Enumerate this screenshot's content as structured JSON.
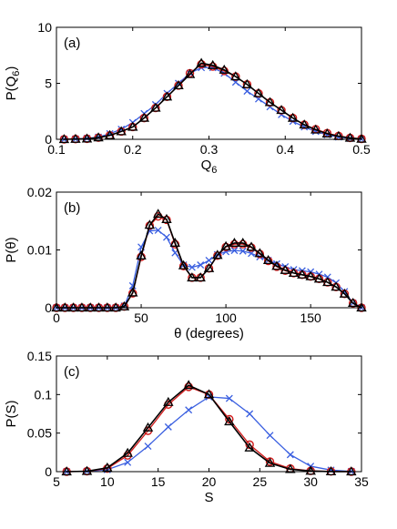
{
  "chart_data": [
    {
      "type": "line",
      "panel_label": "(a)",
      "xlabel": "Q",
      "xlabel_sub": "6",
      "ylabel": "P(Q",
      "ylabel_sub": "6",
      "ylabel_close": ")",
      "xlim": [
        0.1,
        0.5
      ],
      "ylim": [
        0,
        10
      ],
      "xticks": [
        0.1,
        0.2,
        0.3,
        0.4,
        0.5
      ],
      "xtick_labels": [
        "0.1",
        "0.2",
        "0.3",
        "0.4",
        "0.5"
      ],
      "yticks": [
        0,
        5,
        10
      ],
      "ytick_labels": [
        "0",
        "5",
        "10"
      ],
      "grid": false,
      "series": [
        {
          "color": "#3a5fe0",
          "marker": "x",
          "x": [
            0.11,
            0.125,
            0.14,
            0.155,
            0.17,
            0.185,
            0.2,
            0.215,
            0.23,
            0.245,
            0.26,
            0.275,
            0.29,
            0.305,
            0.32,
            0.335,
            0.35,
            0.365,
            0.38,
            0.395,
            0.41,
            0.425,
            0.44,
            0.455,
            0.47,
            0.485,
            0.5
          ],
          "y": [
            0.0,
            0.03,
            0.08,
            0.2,
            0.5,
            0.9,
            1.5,
            2.3,
            3.1,
            4.1,
            5.0,
            5.9,
            6.4,
            6.4,
            5.9,
            5.1,
            4.3,
            3.6,
            2.9,
            2.2,
            1.6,
            1.1,
            0.7,
            0.4,
            0.2,
            0.08,
            0.02
          ]
        },
        {
          "color": "#d01818",
          "marker": "o",
          "x": [
            0.11,
            0.125,
            0.14,
            0.155,
            0.17,
            0.185,
            0.2,
            0.215,
            0.23,
            0.245,
            0.26,
            0.275,
            0.29,
            0.305,
            0.32,
            0.335,
            0.35,
            0.365,
            0.38,
            0.395,
            0.41,
            0.425,
            0.44,
            0.455,
            0.47,
            0.485,
            0.5
          ],
          "y": [
            0.0,
            0.02,
            0.05,
            0.15,
            0.35,
            0.7,
            1.1,
            1.9,
            2.8,
            3.8,
            4.8,
            5.9,
            6.7,
            6.5,
            6.1,
            5.6,
            4.9,
            4.1,
            3.3,
            2.6,
            1.9,
            1.3,
            0.9,
            0.55,
            0.3,
            0.13,
            0.04
          ]
        },
        {
          "color": "#000000",
          "marker": "triangle",
          "x": [
            0.11,
            0.125,
            0.14,
            0.155,
            0.17,
            0.185,
            0.2,
            0.215,
            0.23,
            0.245,
            0.26,
            0.275,
            0.29,
            0.305,
            0.32,
            0.335,
            0.35,
            0.365,
            0.38,
            0.395,
            0.41,
            0.425,
            0.44,
            0.455,
            0.47,
            0.485,
            0.5
          ],
          "y": [
            0.0,
            0.02,
            0.05,
            0.15,
            0.35,
            0.7,
            1.1,
            1.9,
            2.8,
            3.8,
            4.8,
            5.8,
            6.8,
            6.6,
            6.2,
            5.6,
            4.9,
            4.1,
            3.3,
            2.6,
            1.9,
            1.3,
            0.85,
            0.5,
            0.27,
            0.12,
            0.03
          ]
        }
      ]
    },
    {
      "type": "line",
      "panel_label": "(b)",
      "xlabel": "θ (degrees)",
      "ylabel": "P(θ)",
      "xlim": [
        0,
        180
      ],
      "ylim": [
        0,
        0.02
      ],
      "xticks": [
        0,
        50,
        100,
        150
      ],
      "xtick_labels": [
        "0",
        "50",
        "100",
        "150"
      ],
      "yticks": [
        0,
        0.01,
        0.02
      ],
      "ytick_labels": [
        "0",
        "0.01",
        "0.02"
      ],
      "grid": false,
      "series": [
        {
          "color": "#3a5fe0",
          "marker": "x",
          "x": [
            0,
            5,
            10,
            15,
            20,
            25,
            30,
            35,
            40,
            45,
            50,
            55,
            60,
            65,
            70,
            75,
            80,
            85,
            90,
            95,
            100,
            105,
            110,
            115,
            120,
            125,
            130,
            135,
            140,
            145,
            150,
            155,
            160,
            165,
            170,
            175,
            180
          ],
          "y": [
            0,
            0,
            0,
            0,
            0,
            0,
            0,
            0,
            0.0003,
            0.0038,
            0.0105,
            0.0133,
            0.0134,
            0.0122,
            0.0095,
            0.0074,
            0.007,
            0.0074,
            0.0082,
            0.0092,
            0.0097,
            0.0099,
            0.0098,
            0.0094,
            0.0088,
            0.0082,
            0.0076,
            0.0071,
            0.0066,
            0.0064,
            0.0062,
            0.0058,
            0.0053,
            0.0043,
            0.0028,
            0.0008,
            0
          ]
        },
        {
          "color": "#d01818",
          "marker": "o",
          "x": [
            0,
            5,
            10,
            15,
            20,
            25,
            30,
            35,
            40,
            45,
            50,
            55,
            60,
            65,
            70,
            75,
            80,
            85,
            90,
            95,
            100,
            105,
            110,
            115,
            120,
            125,
            130,
            135,
            140,
            145,
            150,
            155,
            160,
            165,
            170,
            175,
            180
          ],
          "y": [
            0,
            0,
            0,
            0,
            0,
            0,
            0,
            0,
            0.0002,
            0.0025,
            0.0088,
            0.0142,
            0.0158,
            0.0152,
            0.011,
            0.0072,
            0.0052,
            0.0052,
            0.0068,
            0.009,
            0.0105,
            0.011,
            0.011,
            0.0104,
            0.0093,
            0.0081,
            0.0071,
            0.0064,
            0.006,
            0.0057,
            0.0054,
            0.005,
            0.0044,
            0.0036,
            0.0024,
            0.0008,
            0
          ]
        },
        {
          "color": "#000000",
          "marker": "triangle",
          "x": [
            0,
            5,
            10,
            15,
            20,
            25,
            30,
            35,
            40,
            45,
            50,
            55,
            60,
            65,
            70,
            75,
            80,
            85,
            90,
            95,
            100,
            105,
            110,
            115,
            120,
            125,
            130,
            135,
            140,
            145,
            150,
            155,
            160,
            165,
            170,
            175,
            180
          ],
          "y": [
            0,
            0,
            0,
            0,
            0,
            0,
            0,
            0,
            0.0002,
            0.0026,
            0.009,
            0.0143,
            0.0162,
            0.0153,
            0.0112,
            0.0073,
            0.0052,
            0.0052,
            0.0068,
            0.0091,
            0.0106,
            0.0112,
            0.0112,
            0.0105,
            0.0094,
            0.0082,
            0.0072,
            0.0065,
            0.006,
            0.0057,
            0.0054,
            0.005,
            0.0044,
            0.0036,
            0.0024,
            0.0008,
            0
          ]
        }
      ]
    },
    {
      "type": "line",
      "panel_label": "(c)",
      "xlabel": "S",
      "ylabel": "P(S)",
      "xlim": [
        5,
        35
      ],
      "ylim": [
        0,
        0.15
      ],
      "xticks": [
        5,
        10,
        15,
        20,
        25,
        30,
        35
      ],
      "xtick_labels": [
        "5",
        "10",
        "15",
        "20",
        "25",
        "30",
        "35"
      ],
      "yticks": [
        0,
        0.05,
        0.1,
        0.15
      ],
      "ytick_labels": [
        "0",
        "0.05",
        "0.1",
        "0.15"
      ],
      "grid": false,
      "series": [
        {
          "color": "#3a5fe0",
          "marker": "x",
          "x": [
            6,
            8,
            10,
            12,
            14,
            16,
            18,
            20,
            22,
            24,
            26,
            28,
            30,
            32,
            34
          ],
          "y": [
            0,
            0.0005,
            0.0025,
            0.012,
            0.033,
            0.058,
            0.08,
            0.097,
            0.095,
            0.075,
            0.047,
            0.022,
            0.007,
            0.002,
            0.0003
          ]
        },
        {
          "color": "#d01818",
          "marker": "o",
          "x": [
            6,
            8,
            10,
            12,
            14,
            16,
            18,
            20,
            22,
            24,
            26,
            28,
            30,
            32,
            34
          ],
          "y": [
            0,
            0.0005,
            0.004,
            0.021,
            0.053,
            0.087,
            0.11,
            0.1,
            0.068,
            0.035,
            0.013,
            0.004,
            0.001,
            0.0002,
            0
          ]
        },
        {
          "color": "#000000",
          "marker": "triangle",
          "x": [
            6,
            8,
            10,
            12,
            14,
            16,
            18,
            20,
            22,
            24,
            26,
            28,
            30,
            32,
            34
          ],
          "y": [
            0,
            0.0005,
            0.005,
            0.024,
            0.057,
            0.09,
            0.112,
            0.1,
            0.065,
            0.031,
            0.011,
            0.003,
            0.0008,
            0.0001,
            0
          ]
        }
      ]
    }
  ]
}
